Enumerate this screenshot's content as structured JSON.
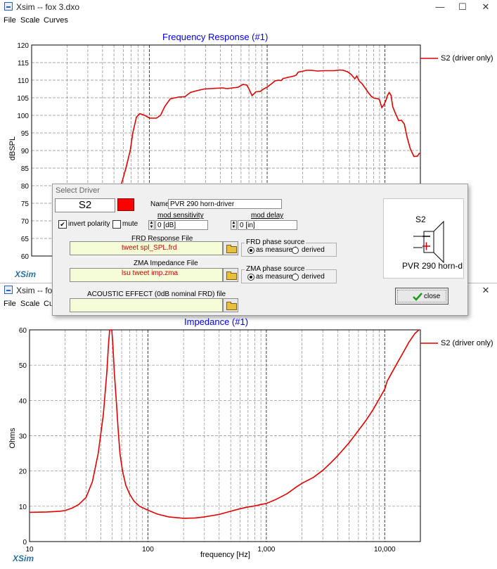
{
  "window1": {
    "title": "Xsim -- fox 3.dxo",
    "menu": [
      "File",
      "Scale",
      "Curves"
    ],
    "chart_title": "Frequency Response (#1)",
    "legend": "S2 (driver only)",
    "ylabel": "dBSPL",
    "xsim_label": "XSim"
  },
  "window2": {
    "title": "Xsim -- fox 3.",
    "menu": [
      "File",
      "Scale",
      "Cu"
    ],
    "chart_title": "Impedance (#1)",
    "legend": "S2 (driver only)",
    "ylabel": "Ohms",
    "xlabel": "frequency [Hz]",
    "xsim_label": "XSim"
  },
  "window_controls": {
    "minimize": "—",
    "maximize": "☐",
    "close": "✕"
  },
  "dialog": {
    "title": "Select Driver",
    "driver_id": "S2",
    "color": "#ff0000",
    "name_label": "Name",
    "name_value": "PVR  290 horn-driver",
    "invert_polarity_label": "invert polarity",
    "invert_polarity_checked": true,
    "mute_label": "mute",
    "mute_checked": false,
    "mod_sensitivity_label": "mod sensitivity",
    "mod_sensitivity_value": "0 [dB]",
    "mod_delay_label": "mod delay",
    "mod_delay_value": "0 [in]",
    "frd_label": "FRD Response File",
    "frd_file": "tweet spl_SPL.frd",
    "frd_phase_label": "FRD phase source",
    "zma_label": "ZMA Impedance File",
    "zma_file": "lsu tweet imp.zma",
    "zma_phase_label": "ZMA phase source",
    "phase_option_measured": "as measured",
    "phase_option_derived": "derived",
    "acoustic_label": "ACOUSTIC EFFECT (0dB nominal FRD) file",
    "preview_id": "S2",
    "preview_name": "PVR  290 horn-d",
    "close_label": "close"
  },
  "chart_data": [
    {
      "type": "line",
      "title": "Frequency Response (#1)",
      "ylabel": "dBSPL",
      "ylim": [
        60,
        120
      ],
      "y_ticks": [
        60,
        65,
        70,
        75,
        80,
        85,
        90,
        95,
        100,
        105,
        110,
        115,
        120
      ],
      "x_scale": "log",
      "xlim": [
        10,
        20000
      ],
      "grid": true,
      "legend_position": "right",
      "series": [
        {
          "name": "S2 (driver only)",
          "color": "#e00000",
          "points": [
            [
              48.2,
              64
            ],
            [
              49.9,
              68
            ],
            [
              53.5,
              73
            ],
            [
              57.4,
              80
            ],
            [
              63.2,
              85
            ],
            [
              68.8,
              90
            ],
            [
              72.3,
              95
            ],
            [
              77.6,
              99.5
            ],
            [
              83.0,
              100.5
            ],
            [
              91.3,
              100
            ],
            [
              100.4,
              99.2
            ],
            [
              114.7,
              99.2
            ],
            [
              124.4,
              100
            ],
            [
              134.9,
              102.5
            ],
            [
              150.6,
              104.7
            ],
            [
              176.9,
              105.2
            ],
            [
              200.1,
              105.3
            ],
            [
              222.9,
              106.5
            ],
            [
              251.8,
              107
            ],
            [
              292.4,
              107.5
            ],
            [
              329.6,
              107.6
            ],
            [
              370.6,
              107.7
            ],
            [
              420.9,
              107.8
            ],
            [
              454.9,
              107.6
            ],
            [
              509.8,
              107.8
            ],
            [
              567.6,
              108
            ],
            [
              623.7,
              108.8
            ],
            [
              673.8,
              108.6
            ],
            [
              714.8,
              106.9
            ],
            [
              745.1,
              105.6
            ],
            [
              802.6,
              106.7
            ],
            [
              873.7,
              106.8
            ],
            [
              932.4,
              107.5
            ],
            [
              997.6,
              108
            ],
            [
              1050,
              108.6
            ],
            [
              1093,
              109
            ],
            [
              1166,
              109.8
            ],
            [
              1245,
              110
            ],
            [
              1316,
              109.9
            ],
            [
              1369,
              110.5
            ],
            [
              1424,
              110.6
            ],
            [
              1496,
              110.8
            ],
            [
              1601,
              111
            ],
            [
              1689,
              111.2
            ],
            [
              1761,
              111.4
            ],
            [
              1836,
              112.3
            ],
            [
              1983,
              112.5
            ],
            [
              2144,
              112.8
            ],
            [
              2389,
              112.8
            ],
            [
              2684,
              112.6
            ],
            [
              3015,
              112.7
            ],
            [
              3361,
              112.7
            ],
            [
              3722,
              112.7
            ],
            [
              4110,
              112.9
            ],
            [
              4434,
              112.8
            ],
            [
              4807,
              112.4
            ],
            [
              5169,
              111.6
            ],
            [
              5552,
              110.4
            ],
            [
              5773,
              111.2
            ],
            [
              6062,
              109.7
            ],
            [
              6399,
              109
            ],
            [
              6778,
              107.8
            ],
            [
              7209,
              106.5
            ],
            [
              7678,
              105.4
            ],
            [
              8046,
              104.9
            ],
            [
              8463,
              104.8
            ],
            [
              8945,
              104.6
            ],
            [
              9422,
              102.2
            ],
            [
              9819,
              103
            ],
            [
              10240,
              104.4
            ],
            [
              10500,
              105.6
            ],
            [
              10870,
              106.5
            ],
            [
              11280,
              105.7
            ],
            [
              11630,
              102.5
            ],
            [
              12190,
              100.8
            ],
            [
              13080,
              98.5
            ],
            [
              13820,
              98.6
            ],
            [
              14610,
              97.5
            ],
            [
              15420,
              93.8
            ],
            [
              16410,
              90.5
            ],
            [
              17650,
              88.3
            ],
            [
              18870,
              88.4
            ],
            [
              19700,
              89.3
            ]
          ]
        }
      ]
    },
    {
      "type": "line",
      "title": "Impedance (#1)",
      "ylabel": "Ohms",
      "xlabel": "frequency [Hz]",
      "ylim": [
        0,
        60
      ],
      "y_ticks": [
        0,
        10,
        20,
        30,
        40,
        50,
        60
      ],
      "x_scale": "log",
      "xlim": [
        10,
        20000
      ],
      "x_tick_labels": [
        "10",
        "100",
        "1,000",
        "10,000"
      ],
      "grid": true,
      "legend_position": "right",
      "series": [
        {
          "name": "S2 (driver only)",
          "color": "#e00000",
          "points": [
            [
              10,
              8.3
            ],
            [
              14,
              8.4
            ],
            [
              18,
              8.6
            ],
            [
              20,
              8.8
            ],
            [
              23,
              9.5
            ],
            [
              26,
              10.5
            ],
            [
              30,
              12.5
            ],
            [
              34,
              17
            ],
            [
              38,
              25
            ],
            [
              42,
              36
            ],
            [
              45,
              48
            ],
            [
              46.5,
              56
            ],
            [
              47.5,
              60
            ],
            [
              49.5,
              60
            ],
            [
              50.5,
              56
            ],
            [
              52,
              48
            ],
            [
              54,
              40
            ],
            [
              56,
              32
            ],
            [
              58,
              25
            ],
            [
              61,
              20
            ],
            [
              65,
              16
            ],
            [
              70,
              13.5
            ],
            [
              76,
              11.5
            ],
            [
              85,
              10
            ],
            [
              100,
              8.9
            ],
            [
              120,
              7.8
            ],
            [
              150,
              7
            ],
            [
              200,
              6.6
            ],
            [
              250,
              6.7
            ],
            [
              300,
              7
            ],
            [
              400,
              7.7
            ],
            [
              500,
              8.6
            ],
            [
              600,
              9.3
            ],
            [
              700,
              9.8
            ],
            [
              800,
              10.1
            ],
            [
              900,
              10.5
            ],
            [
              1000,
              10.8
            ],
            [
              1200,
              11.9
            ],
            [
              1500,
              13.6
            ],
            [
              1800,
              15.5
            ],
            [
              2000,
              16.5
            ],
            [
              2500,
              18.2
            ],
            [
              3000,
              20.2
            ],
            [
              3500,
              22.3
            ],
            [
              4000,
              24.3
            ],
            [
              5000,
              28
            ],
            [
              6000,
              31.5
            ],
            [
              7000,
              34.5
            ],
            [
              8000,
              37.5
            ],
            [
              9000,
              40.5
            ],
            [
              10000,
              43.2
            ],
            [
              10500,
              45.5
            ],
            [
              12000,
              49
            ],
            [
              14000,
              53
            ],
            [
              16000,
              56.5
            ],
            [
              18000,
              59
            ],
            [
              19500,
              60
            ]
          ]
        }
      ]
    }
  ]
}
